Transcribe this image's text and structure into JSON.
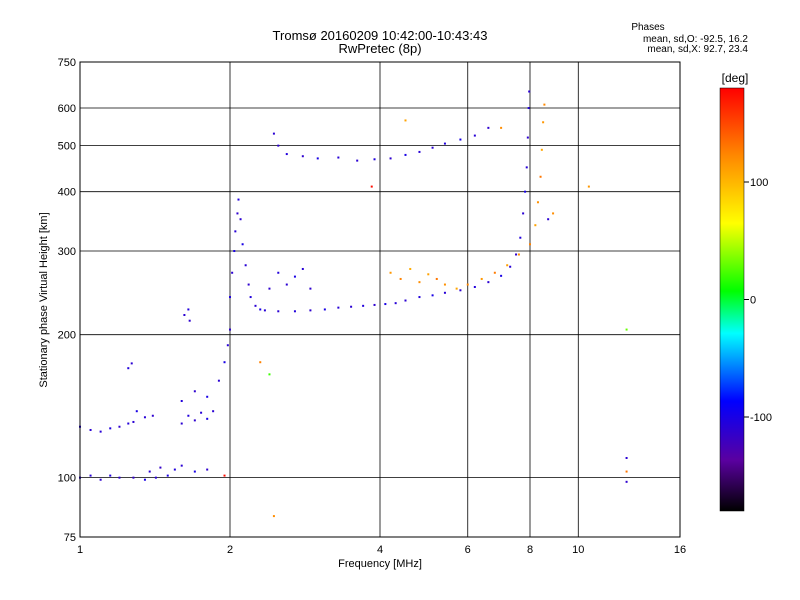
{
  "header": {
    "title_line1": "Tromsø 20160209 10:42:00-10:43:43",
    "title_line2": "RwPretec (8p)",
    "phases_title": "Phases",
    "phases_o": "mean, sd,O: -92.5, 16.2",
    "phases_x": "mean, sd,X: 92.7, 23.4"
  },
  "colorbar": {
    "unit": "[deg]",
    "range": [
      -180,
      180
    ],
    "ticks": [
      {
        "value": 100,
        "label": "100"
      },
      {
        "value": 0,
        "label": "0"
      },
      {
        "value": -100,
        "label": "-100"
      }
    ]
  },
  "chart_data": {
    "type": "scatter",
    "xlabel": "Frequency [MHz]",
    "ylabel": "Stationary phase Virtual Height [km]",
    "xscale": "log",
    "yscale": "log",
    "xlim": [
      1,
      16
    ],
    "ylim": [
      75,
      750
    ],
    "grid": true,
    "xticks": [
      {
        "value": 1,
        "label": "1"
      },
      {
        "value": 2,
        "label": "2"
      },
      {
        "value": 4,
        "label": "4"
      },
      {
        "value": 6,
        "label": "6"
      },
      {
        "value": 8,
        "label": "8"
      },
      {
        "value": 10,
        "label": "10"
      },
      {
        "value": 16,
        "label": "16"
      }
    ],
    "yticks": [
      {
        "value": 75,
        "label": "75"
      },
      {
        "value": 100,
        "label": "100"
      },
      {
        "value": 200,
        "label": "200"
      },
      {
        "value": 300,
        "label": "300"
      },
      {
        "value": 400,
        "label": "400"
      },
      {
        "value": 500,
        "label": "500"
      },
      {
        "value": 600,
        "label": "600"
      },
      {
        "value": 750,
        "label": "750"
      }
    ],
    "color_dimension": "phase [deg]",
    "points": [
      {
        "x": 1.0,
        "y": 100,
        "c": -110
      },
      {
        "x": 1.05,
        "y": 101,
        "c": -108
      },
      {
        "x": 1.1,
        "y": 99,
        "c": -112
      },
      {
        "x": 1.15,
        "y": 101,
        "c": -105
      },
      {
        "x": 1.2,
        "y": 100,
        "c": -110
      },
      {
        "x": 1.28,
        "y": 100,
        "c": -115
      },
      {
        "x": 1.35,
        "y": 99,
        "c": -100
      },
      {
        "x": 1.42,
        "y": 100,
        "c": -108
      },
      {
        "x": 1.5,
        "y": 101,
        "c": -102
      },
      {
        "x": 1.38,
        "y": 103,
        "c": -110
      },
      {
        "x": 1.45,
        "y": 105,
        "c": -115
      },
      {
        "x": 1.55,
        "y": 104,
        "c": -105
      },
      {
        "x": 1.6,
        "y": 106,
        "c": -110
      },
      {
        "x": 1.7,
        "y": 103,
        "c": -100
      },
      {
        "x": 1.8,
        "y": 104,
        "c": -112
      },
      {
        "x": 1.0,
        "y": 128,
        "c": -105
      },
      {
        "x": 1.05,
        "y": 126,
        "c": -110
      },
      {
        "x": 1.1,
        "y": 125,
        "c": -108
      },
      {
        "x": 1.15,
        "y": 127,
        "c": -104
      },
      {
        "x": 1.2,
        "y": 128,
        "c": -112
      },
      {
        "x": 1.25,
        "y": 130,
        "c": -106
      },
      {
        "x": 1.28,
        "y": 131,
        "c": -110
      },
      {
        "x": 1.3,
        "y": 138,
        "c": -100
      },
      {
        "x": 1.35,
        "y": 134,
        "c": -108
      },
      {
        "x": 1.4,
        "y": 135,
        "c": -112
      },
      {
        "x": 1.25,
        "y": 170,
        "c": -105
      },
      {
        "x": 1.27,
        "y": 174,
        "c": -110
      },
      {
        "x": 1.6,
        "y": 130,
        "c": -110
      },
      {
        "x": 1.65,
        "y": 135,
        "c": -105
      },
      {
        "x": 1.7,
        "y": 132,
        "c": -112
      },
      {
        "x": 1.75,
        "y": 137,
        "c": -108
      },
      {
        "x": 1.8,
        "y": 133,
        "c": -100
      },
      {
        "x": 1.85,
        "y": 138,
        "c": -110
      },
      {
        "x": 1.6,
        "y": 145,
        "c": -105
      },
      {
        "x": 1.7,
        "y": 152,
        "c": -112
      },
      {
        "x": 1.8,
        "y": 148,
        "c": -100
      },
      {
        "x": 1.62,
        "y": 220,
        "c": -110
      },
      {
        "x": 1.65,
        "y": 226,
        "c": -105
      },
      {
        "x": 1.66,
        "y": 214,
        "c": -112
      },
      {
        "x": 1.9,
        "y": 160,
        "c": -110
      },
      {
        "x": 1.95,
        "y": 175,
        "c": -100
      },
      {
        "x": 1.98,
        "y": 190,
        "c": -108
      },
      {
        "x": 2.0,
        "y": 205,
        "c": -112
      },
      {
        "x": 2.0,
        "y": 240,
        "c": -104
      },
      {
        "x": 2.02,
        "y": 270,
        "c": -110
      },
      {
        "x": 2.04,
        "y": 300,
        "c": -100
      },
      {
        "x": 2.05,
        "y": 330,
        "c": -108
      },
      {
        "x": 2.07,
        "y": 360,
        "c": -112
      },
      {
        "x": 2.08,
        "y": 385,
        "c": -105
      },
      {
        "x": 2.1,
        "y": 350,
        "c": -110
      },
      {
        "x": 2.12,
        "y": 310,
        "c": -100
      },
      {
        "x": 2.15,
        "y": 280,
        "c": -108
      },
      {
        "x": 2.18,
        "y": 255,
        "c": -112
      },
      {
        "x": 2.2,
        "y": 240,
        "c": -105
      },
      {
        "x": 2.25,
        "y": 230,
        "c": -110
      },
      {
        "x": 2.3,
        "y": 226,
        "c": -100
      },
      {
        "x": 2.35,
        "y": 225,
        "c": -108
      },
      {
        "x": 2.4,
        "y": 250,
        "c": -112
      },
      {
        "x": 2.5,
        "y": 270,
        "c": -105
      },
      {
        "x": 2.6,
        "y": 255,
        "c": -110
      },
      {
        "x": 2.7,
        "y": 265,
        "c": -100
      },
      {
        "x": 2.8,
        "y": 275,
        "c": -108
      },
      {
        "x": 2.9,
        "y": 250,
        "c": -112
      },
      {
        "x": 2.5,
        "y": 224,
        "c": -110
      },
      {
        "x": 2.7,
        "y": 224,
        "c": -105
      },
      {
        "x": 2.9,
        "y": 225,
        "c": -112
      },
      {
        "x": 3.1,
        "y": 226,
        "c": -100
      },
      {
        "x": 3.3,
        "y": 228,
        "c": -108
      },
      {
        "x": 3.5,
        "y": 229,
        "c": -110
      },
      {
        "x": 3.7,
        "y": 230,
        "c": -105
      },
      {
        "x": 3.9,
        "y": 231,
        "c": -112
      },
      {
        "x": 4.1,
        "y": 232,
        "c": -100
      },
      {
        "x": 4.3,
        "y": 233,
        "c": -108
      },
      {
        "x": 4.5,
        "y": 236,
        "c": -110
      },
      {
        "x": 4.8,
        "y": 240,
        "c": -105
      },
      {
        "x": 5.1,
        "y": 242,
        "c": -100
      },
      {
        "x": 5.4,
        "y": 245,
        "c": -108
      },
      {
        "x": 5.8,
        "y": 248,
        "c": -112
      },
      {
        "x": 6.2,
        "y": 252,
        "c": -105
      },
      {
        "x": 6.6,
        "y": 258,
        "c": -110
      },
      {
        "x": 7.0,
        "y": 266,
        "c": -100
      },
      {
        "x": 7.3,
        "y": 278,
        "c": -108
      },
      {
        "x": 7.5,
        "y": 295,
        "c": -112
      },
      {
        "x": 7.65,
        "y": 320,
        "c": -105
      },
      {
        "x": 7.75,
        "y": 360,
        "c": -110
      },
      {
        "x": 7.82,
        "y": 400,
        "c": -100
      },
      {
        "x": 7.88,
        "y": 450,
        "c": -108
      },
      {
        "x": 7.92,
        "y": 520,
        "c": -112
      },
      {
        "x": 7.95,
        "y": 600,
        "c": -105
      },
      {
        "x": 7.97,
        "y": 650,
        "c": -110
      },
      {
        "x": 2.5,
        "y": 500,
        "c": -110
      },
      {
        "x": 2.6,
        "y": 480,
        "c": -105
      },
      {
        "x": 2.8,
        "y": 475,
        "c": -112
      },
      {
        "x": 3.0,
        "y": 470,
        "c": -100
      },
      {
        "x": 3.3,
        "y": 472,
        "c": -108
      },
      {
        "x": 3.6,
        "y": 465,
        "c": -110
      },
      {
        "x": 3.9,
        "y": 468,
        "c": -105
      },
      {
        "x": 4.2,
        "y": 470,
        "c": -112
      },
      {
        "x": 4.5,
        "y": 478,
        "c": -100
      },
      {
        "x": 4.8,
        "y": 485,
        "c": -108
      },
      {
        "x": 5.1,
        "y": 495,
        "c": -110
      },
      {
        "x": 5.4,
        "y": 505,
        "c": -105
      },
      {
        "x": 5.8,
        "y": 515,
        "c": -100
      },
      {
        "x": 6.2,
        "y": 525,
        "c": -108
      },
      {
        "x": 6.6,
        "y": 545,
        "c": -112
      },
      {
        "x": 2.45,
        "y": 530,
        "c": -110
      },
      {
        "x": 4.5,
        "y": 565,
        "c": 110
      },
      {
        "x": 7.0,
        "y": 545,
        "c": 120
      },
      {
        "x": 4.2,
        "y": 270,
        "c": 115
      },
      {
        "x": 4.4,
        "y": 262,
        "c": 125
      },
      {
        "x": 4.6,
        "y": 275,
        "c": 105
      },
      {
        "x": 4.8,
        "y": 258,
        "c": 120
      },
      {
        "x": 5.0,
        "y": 268,
        "c": 110
      },
      {
        "x": 5.2,
        "y": 262,
        "c": 130
      },
      {
        "x": 5.4,
        "y": 255,
        "c": 118
      },
      {
        "x": 5.7,
        "y": 250,
        "c": 108
      },
      {
        "x": 6.0,
        "y": 255,
        "c": 122
      },
      {
        "x": 6.4,
        "y": 262,
        "c": 115
      },
      {
        "x": 6.8,
        "y": 270,
        "c": 128
      },
      {
        "x": 7.2,
        "y": 280,
        "c": 112
      },
      {
        "x": 7.6,
        "y": 295,
        "c": 120
      },
      {
        "x": 8.0,
        "y": 310,
        "c": 125
      },
      {
        "x": 8.2,
        "y": 340,
        "c": 110
      },
      {
        "x": 8.3,
        "y": 380,
        "c": 118
      },
      {
        "x": 8.4,
        "y": 430,
        "c": 130
      },
      {
        "x": 8.45,
        "y": 490,
        "c": 108
      },
      {
        "x": 8.5,
        "y": 560,
        "c": 115
      },
      {
        "x": 8.55,
        "y": 610,
        "c": 122
      },
      {
        "x": 8.7,
        "y": 350,
        "c": -110
      },
      {
        "x": 8.9,
        "y": 360,
        "c": 120
      },
      {
        "x": 10.5,
        "y": 410,
        "c": 115
      },
      {
        "x": 3.85,
        "y": 410,
        "c": 175
      },
      {
        "x": 1.95,
        "y": 101,
        "c": 175
      },
      {
        "x": 2.45,
        "y": 83,
        "c": 120
      },
      {
        "x": 12.5,
        "y": 110,
        "c": -110
      },
      {
        "x": 12.5,
        "y": 103,
        "c": 130
      },
      {
        "x": 12.5,
        "y": 98,
        "c": -112
      },
      {
        "x": 12.5,
        "y": 205,
        "c": 30
      },
      {
        "x": 2.3,
        "y": 175,
        "c": 125
      },
      {
        "x": 2.4,
        "y": 165,
        "c": 20
      }
    ]
  }
}
